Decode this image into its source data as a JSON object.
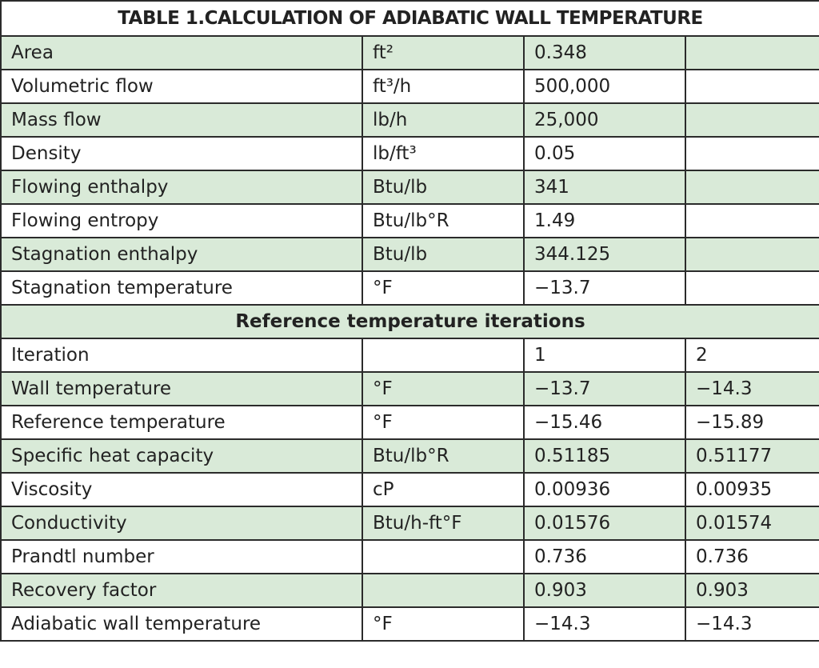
{
  "title": "TABLE 1.CALCULATION OF ADIABATIC WALL TEMPERATURE",
  "rows_top": [
    {
      "label": "Area",
      "unit": "ft²",
      "value": "0.348",
      "value2": ""
    },
    {
      "label": "Volumetric flow",
      "unit": "ft³/h",
      "value": "500,000",
      "value2": ""
    },
    {
      "label": "Mass flow",
      "unit": "lb/h",
      "value": "25,000",
      "value2": ""
    },
    {
      "label": "Density",
      "unit": "lb/ft³",
      "value": "0.05",
      "value2": ""
    },
    {
      "label": "Flowing enthalpy",
      "unit": "Btu/lb",
      "value": "341",
      "value2": ""
    },
    {
      "label": "Flowing entropy",
      "unit": "Btu/lb°R",
      "value": "1.49",
      "value2": ""
    },
    {
      "label": "Stagnation enthalpy",
      "unit": "Btu/lb",
      "value": "344.125",
      "value2": ""
    },
    {
      "label": "Stagnation temperature",
      "unit": "°F",
      "value": "−13.7",
      "value2": ""
    }
  ],
  "section_heading": "Reference temperature iterations",
  "rows_bottom": [
    {
      "label": "Iteration",
      "unit": "",
      "value": "1",
      "value2": "2"
    },
    {
      "label": "Wall temperature",
      "unit": "°F",
      "value": "−13.7",
      "value2": "−14.3"
    },
    {
      "label": "Reference temperature",
      "unit": "°F",
      "value": "−15.46",
      "value2": "−15.89"
    },
    {
      "label": "Specific heat capacity",
      "unit": "Btu/lb°R",
      "value": "0.51185",
      "value2": "0.51177"
    },
    {
      "label": "Viscosity",
      "unit": "cP",
      "value": "0.00936",
      "value2": "0.00935"
    },
    {
      "label": "Conductivity",
      "unit": "Btu/h-ft°F",
      "value": "0.01576",
      "value2": "0.01574"
    },
    {
      "label": "Prandtl number",
      "unit": "",
      "value": "0.736",
      "value2": "0.736"
    },
    {
      "label": "Recovery factor",
      "unit": "",
      "value": "0.903",
      "value2": "0.903"
    },
    {
      "label": "Adiabatic wall temperature",
      "unit": "°F",
      "value": "−14.3",
      "value2": "−14.3"
    }
  ],
  "colors": {
    "stripe": "#d9ead8",
    "border": "#2b2b2b",
    "text": "#222222"
  }
}
